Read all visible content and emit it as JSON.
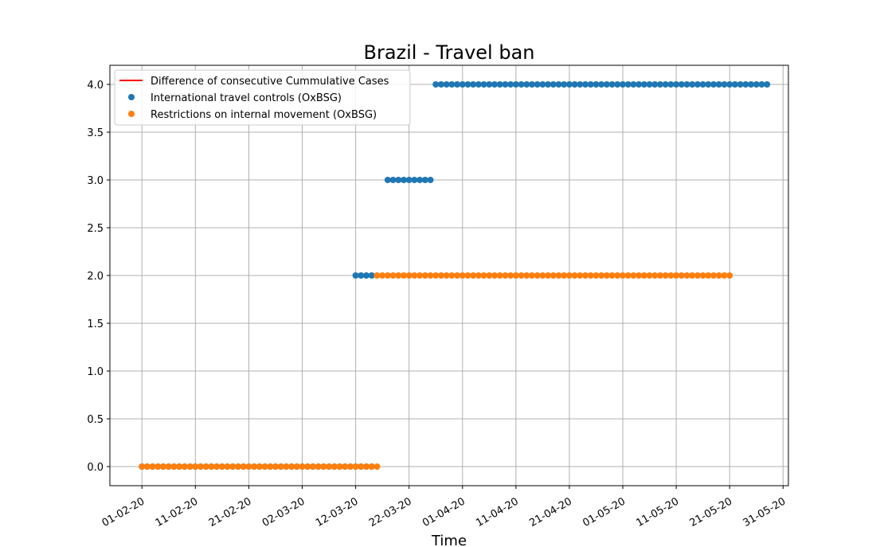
{
  "chart_data": {
    "type": "scatter",
    "title": "Brazil - Travel ban",
    "xlabel": "Time",
    "ylabel": "",
    "ylim": [
      -0.2,
      4.2
    ],
    "xlim": [
      "2020-01-26",
      "2020-06-01"
    ],
    "yticks": [
      0.0,
      0.5,
      1.0,
      1.5,
      2.0,
      2.5,
      3.0,
      3.5,
      4.0
    ],
    "ytick_labels": [
      "0.0",
      "0.5",
      "1.0",
      "1.5",
      "2.0",
      "2.5",
      "3.0",
      "3.5",
      "4.0"
    ],
    "xticks": [
      "2020-02-01",
      "2020-02-11",
      "2020-02-21",
      "2020-03-02",
      "2020-03-12",
      "2020-03-22",
      "2020-04-01",
      "2020-04-11",
      "2020-04-21",
      "2020-05-01",
      "2020-05-11",
      "2020-05-21",
      "2020-05-31"
    ],
    "xtick_labels": [
      "01-02-20",
      "11-02-20",
      "21-02-20",
      "02-03-20",
      "12-03-20",
      "22-03-20",
      "01-04-20",
      "11-04-20",
      "21-04-20",
      "01-05-20",
      "11-05-20",
      "21-05-20",
      "31-05-20"
    ],
    "grid": true,
    "legend_position": "upper-left",
    "series": [
      {
        "name": "Difference of consecutive Cummulative Cases",
        "kind": "line",
        "color": "#ff0000",
        "segments": []
      },
      {
        "name": "International travel controls (OxBSG)",
        "kind": "scatter",
        "color": "#1f77b4",
        "segments": [
          {
            "start": "2020-02-01",
            "end": "2020-03-15",
            "y": 0
          },
          {
            "start": "2020-03-12",
            "end": "2020-03-15",
            "y": 2
          },
          {
            "start": "2020-03-18",
            "end": "2020-03-26",
            "y": 3
          },
          {
            "start": "2020-03-27",
            "end": "2020-05-28",
            "y": 4
          }
        ]
      },
      {
        "name": "Restrictions on internal movement (OxBSG)",
        "kind": "scatter",
        "color": "#ff7f0e",
        "segments": [
          {
            "start": "2020-02-01",
            "end": "2020-03-16",
            "y": 0
          },
          {
            "start": "2020-03-16",
            "end": "2020-05-21",
            "y": 2
          }
        ]
      }
    ]
  }
}
